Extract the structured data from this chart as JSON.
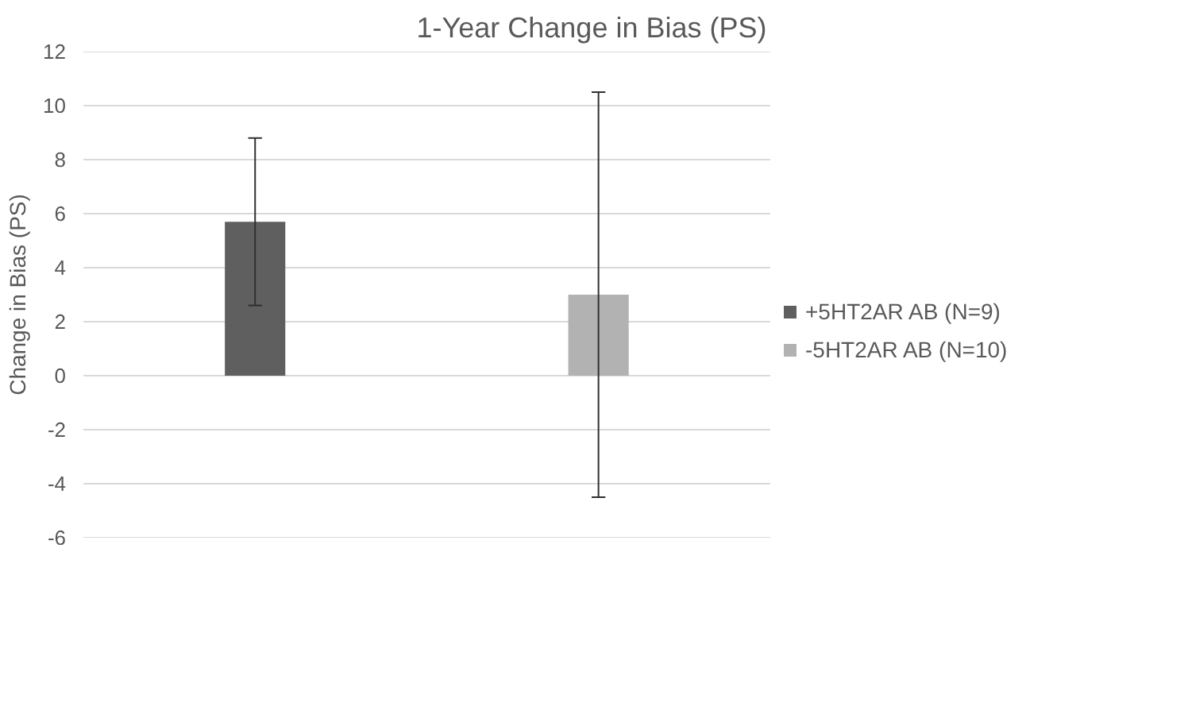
{
  "chart_data": {
    "type": "bar",
    "title": "1-Year Change in Bias (PS)",
    "ylabel": "Change in Bias (PS)",
    "categories": [
      null
    ],
    "series": [
      {
        "name": "+5HT2AR AB (N=9)",
        "color": "#5f5f5f",
        "values": [
          5.7
        ],
        "errors": [
          [
            2.6,
            8.8
          ]
        ]
      },
      {
        "name": "-5HT2AR AB (N=10)",
        "color": "#b2b2b2",
        "values": [
          3.0
        ],
        "errors": [
          [
            -4.5,
            10.5
          ]
        ]
      }
    ],
    "ylim": [
      -6,
      12
    ],
    "yticks": [
      -6,
      -4,
      -2,
      0,
      2,
      4,
      6,
      8,
      10,
      12
    ],
    "grid": "y",
    "legend": "right",
    "tick_labels": "y"
  }
}
